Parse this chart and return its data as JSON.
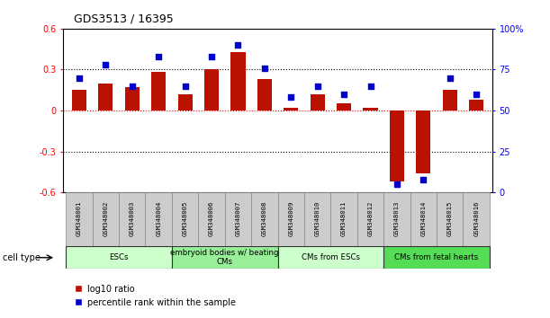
{
  "title": "GDS3513 / 16395",
  "samples": [
    "GSM348001",
    "GSM348002",
    "GSM348003",
    "GSM348004",
    "GSM348005",
    "GSM348006",
    "GSM348007",
    "GSM348008",
    "GSM348009",
    "GSM348010",
    "GSM348011",
    "GSM348012",
    "GSM348013",
    "GSM348014",
    "GSM348015",
    "GSM348016"
  ],
  "log10_ratio": [
    0.15,
    0.2,
    0.17,
    0.28,
    0.12,
    0.3,
    0.43,
    0.23,
    0.02,
    0.12,
    0.05,
    0.02,
    -0.52,
    -0.46,
    0.15,
    0.08
  ],
  "percentile_rank": [
    70,
    78,
    65,
    83,
    65,
    83,
    90,
    76,
    58,
    65,
    60,
    65,
    5,
    8,
    70,
    60
  ],
  "bar_color": "#bb1100",
  "dot_color": "#0000cc",
  "cell_type_groups": [
    {
      "label": "ESCs",
      "start": 0,
      "end": 3,
      "color": "#ccffcc"
    },
    {
      "label": "embryoid bodies w/ beating\nCMs",
      "start": 4,
      "end": 7,
      "color": "#99ee99"
    },
    {
      "label": "CMs from ESCs",
      "start": 8,
      "end": 11,
      "color": "#ccffcc"
    },
    {
      "label": "CMs from fetal hearts",
      "start": 12,
      "end": 15,
      "color": "#55dd55"
    }
  ],
  "ylim": [
    -0.6,
    0.6
  ],
  "y2lim": [
    0,
    100
  ],
  "yticks_left": [
    -0.6,
    -0.3,
    0.0,
    0.3,
    0.6
  ],
  "ytick_labels_left": [
    "-0.6",
    "-0.3",
    "0",
    "0.3",
    "0.6"
  ],
  "y2ticks": [
    0,
    25,
    50,
    75,
    100
  ],
  "y2tick_labels": [
    "0",
    "25",
    "50",
    "75",
    "100%"
  ],
  "hlines_dotted": [
    0.3,
    -0.3
  ],
  "background_color": "#ffffff",
  "sample_box_color": "#cccccc",
  "legend_ratio_label": "log10 ratio",
  "legend_rank_label": "percentile rank within the sample"
}
